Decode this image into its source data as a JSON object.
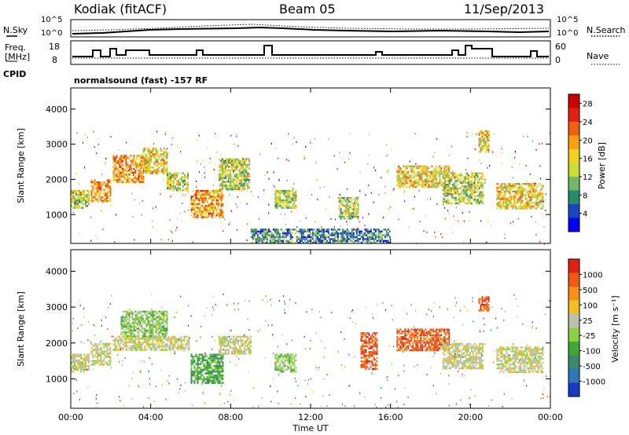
{
  "header": {
    "station": "Kodiak (fitACF)",
    "beam": "Beam 05",
    "date": "11/Sep/2013"
  },
  "top_panels": {
    "nsky_label": "N.Sky",
    "nsky_ticks": [
      "10^5",
      "10^0"
    ],
    "nsearch_label": "N.Search",
    "nsearch_ticks": [
      "10^5",
      "10^0"
    ],
    "freq_label_line1": "Freq.",
    "freq_label_line2": "[MHz]",
    "freq_ticks": [
      "18",
      "8"
    ],
    "nave_label": "Nave",
    "nave_ticks": [
      "60",
      "0"
    ],
    "cpid_label": "CPID",
    "cpid_value": "normalsound (fast) -157 RF"
  },
  "chart_data": [
    {
      "type": "heatmap",
      "name": "power",
      "xlabel": "Time UT",
      "ylabel": "Slant Range [km]",
      "x_ticks": [
        "00:00",
        "04:00",
        "08:00",
        "12:00",
        "16:00",
        "20:00",
        "00:00"
      ],
      "xlim_hours": [
        0,
        24
      ],
      "y_ticks": [
        1000,
        2000,
        3000,
        4000
      ],
      "ylim": [
        180,
        4600
      ],
      "colorbar_label": "Power [dB]",
      "colorbar_ticks": [
        4,
        8,
        12,
        16,
        20,
        24,
        28
      ],
      "colorbar_range": [
        0,
        30
      ],
      "colors": [
        "#0000ff",
        "#1848c0",
        "#2a8a6a",
        "#6fb868",
        "#c8dd38",
        "#f0d020",
        "#f8a010",
        "#f06010",
        "#e02010",
        "#d00000"
      ],
      "regions": [
        {
          "t0": 0.0,
          "t1": 0.9,
          "r0": 1200,
          "r1": 1700,
          "v": 14
        },
        {
          "t0": 1.0,
          "t1": 2.0,
          "r0": 1400,
          "r1": 2000,
          "v": 18
        },
        {
          "t0": 2.1,
          "t1": 3.6,
          "r0": 1900,
          "r1": 2700,
          "v": 20
        },
        {
          "t0": 3.6,
          "t1": 4.8,
          "r0": 2200,
          "r1": 2900,
          "v": 17
        },
        {
          "t0": 4.8,
          "t1": 5.9,
          "r0": 1700,
          "r1": 2200,
          "v": 14
        },
        {
          "t0": 6.0,
          "t1": 7.6,
          "r0": 900,
          "r1": 1700,
          "v": 18
        },
        {
          "t0": 7.4,
          "t1": 8.9,
          "r0": 1700,
          "r1": 2600,
          "v": 13
        },
        {
          "t0": 10.2,
          "t1": 11.3,
          "r0": 1200,
          "r1": 1700,
          "v": 12
        },
        {
          "t0": 13.4,
          "t1": 14.4,
          "r0": 900,
          "r1": 1500,
          "v": 13
        },
        {
          "t0": 16.3,
          "t1": 18.9,
          "r0": 1800,
          "r1": 2400,
          "v": 16
        },
        {
          "t0": 18.6,
          "t1": 20.6,
          "r0": 1300,
          "r1": 2200,
          "v": 12
        },
        {
          "t0": 20.4,
          "t1": 20.9,
          "r0": 2800,
          "r1": 3400,
          "v": 17
        },
        {
          "t0": 21.3,
          "t1": 23.6,
          "r0": 1200,
          "r1": 1900,
          "v": 15
        },
        {
          "t0": 9.0,
          "t1": 16.0,
          "r0": 200,
          "r1": 600,
          "v": 6
        }
      ]
    },
    {
      "type": "heatmap",
      "name": "velocity",
      "xlabel": "Time UT",
      "ylabel": "Slant Range [km]",
      "x_ticks": [
        "00:00",
        "04:00",
        "08:00",
        "12:00",
        "16:00",
        "20:00",
        "00:00"
      ],
      "xlim_hours": [
        0,
        24
      ],
      "y_ticks": [
        1000,
        2000,
        3000,
        4000
      ],
      "ylim": [
        180,
        4600
      ],
      "colorbar_label": "Velocity [m s⁻¹]",
      "colorbar_ticks": [
        "1000",
        "500",
        "100",
        "25",
        "-25",
        "-100",
        "-500",
        "-1000"
      ],
      "colors": [
        "#1838c8",
        "#2f78b8",
        "#3a8a6a",
        "#40a838",
        "#8ed040",
        "#c0c0b0",
        "#f0c020",
        "#f89018",
        "#f05a10",
        "#e02010"
      ],
      "regions": [
        {
          "t0": 0.0,
          "t1": 0.9,
          "r0": 1200,
          "r1": 1700,
          "v": 5
        },
        {
          "t0": 1.0,
          "t1": 2.0,
          "r0": 1400,
          "r1": 2000,
          "v": 5
        },
        {
          "t0": 2.1,
          "t1": 5.9,
          "r0": 1800,
          "r1": 2200,
          "v": 5
        },
        {
          "t0": 2.5,
          "t1": 4.8,
          "r0": 2200,
          "r1": 2900,
          "v": 4
        },
        {
          "t0": 6.0,
          "t1": 7.6,
          "r0": 900,
          "r1": 1700,
          "v": 3
        },
        {
          "t0": 7.4,
          "t1": 9.0,
          "r0": 1700,
          "r1": 2200,
          "v": 5
        },
        {
          "t0": 10.2,
          "t1": 11.3,
          "r0": 1200,
          "r1": 1700,
          "v": 4
        },
        {
          "t0": 14.5,
          "t1": 15.3,
          "r0": 1300,
          "r1": 2300,
          "v": 8
        },
        {
          "t0": 16.3,
          "t1": 18.9,
          "r0": 1800,
          "r1": 2400,
          "v": 8
        },
        {
          "t0": 18.6,
          "t1": 20.6,
          "r0": 1300,
          "r1": 2000,
          "v": 5
        },
        {
          "t0": 20.4,
          "t1": 20.9,
          "r0": 2900,
          "r1": 3300,
          "v": 8
        },
        {
          "t0": 21.3,
          "t1": 23.6,
          "r0": 1200,
          "r1": 1900,
          "v": 5
        }
      ]
    }
  ]
}
